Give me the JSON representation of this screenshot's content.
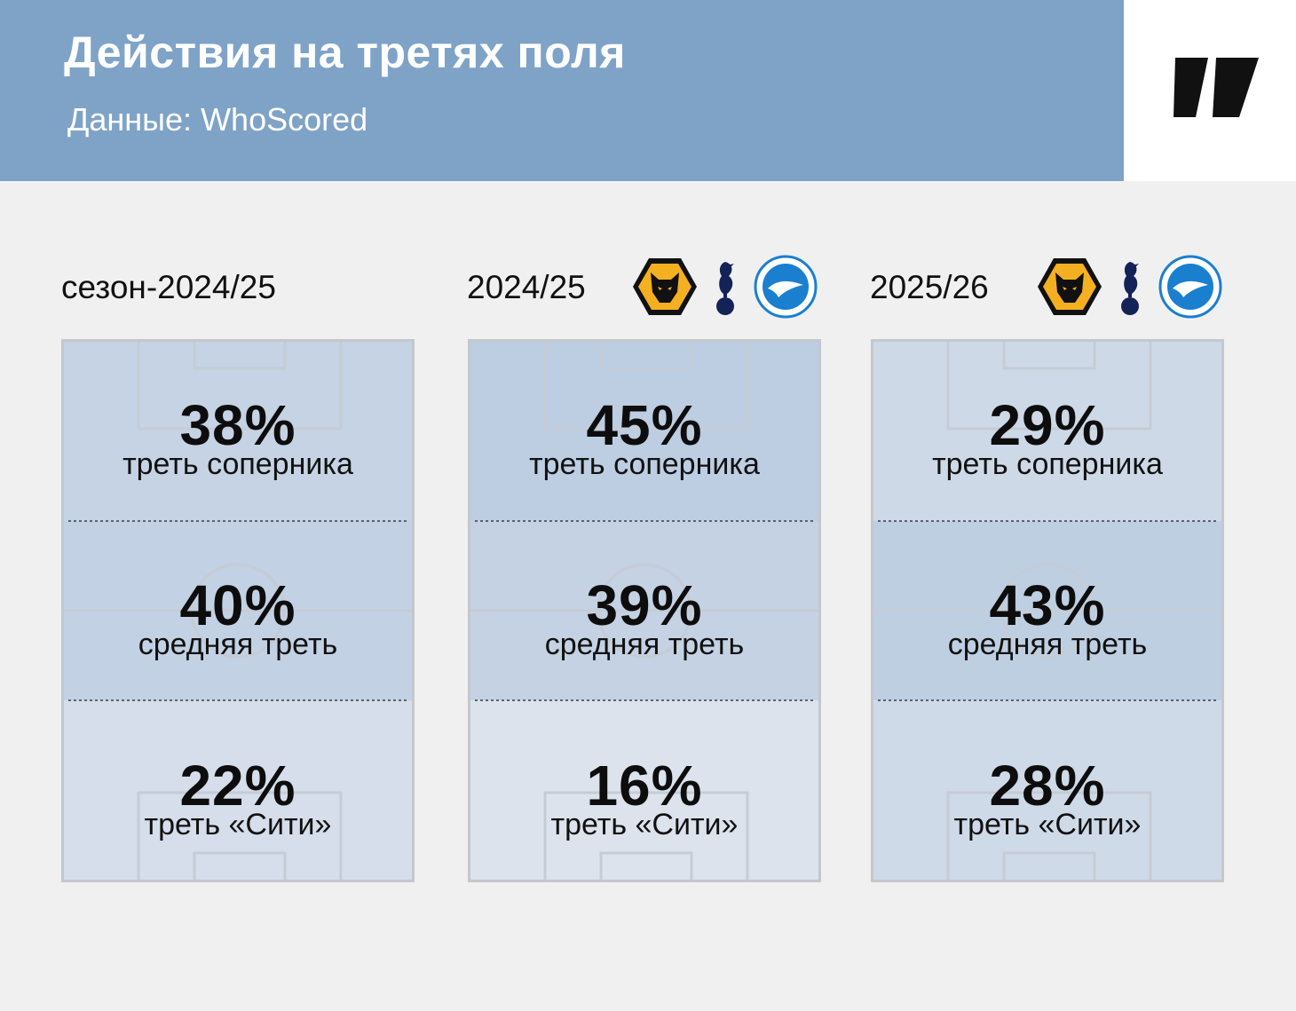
{
  "header": {
    "title": "Действия на третях поля",
    "subtitle": "Данные: WhoScored"
  },
  "logo": {
    "icon": "publisher-logo-icon"
  },
  "colors": {
    "header_bg": "#7fa3c7",
    "page_bg": "#f0f0f0",
    "pitch_line": "#c3c8ce",
    "wolves": "#f4b020",
    "brighton": "#1b7fd0",
    "spurs": "#132257"
  },
  "chart_data": {
    "type": "table",
    "rows": [
      "треть соперника",
      "средняя треть",
      "треть «Сити»"
    ],
    "panels": [
      {
        "label": "сезон-2024/25",
        "crests": [],
        "values": [
          38,
          40,
          22
        ],
        "value_labels": [
          "38%",
          "40%",
          "22%"
        ]
      },
      {
        "label": "2024/25",
        "crests": [
          "wolves-crest-icon",
          "tottenham-crest-icon",
          "brighton-crest-icon"
        ],
        "values": [
          45,
          39,
          16
        ],
        "value_labels": [
          "45%",
          "39%",
          "16%"
        ]
      },
      {
        "label": "2025/26",
        "crests": [
          "wolves-crest-icon",
          "tottenham-crest-icon",
          "brighton-crest-icon"
        ],
        "values": [
          29,
          43,
          28
        ],
        "value_labels": [
          "29%",
          "43%",
          "28%"
        ]
      }
    ]
  }
}
